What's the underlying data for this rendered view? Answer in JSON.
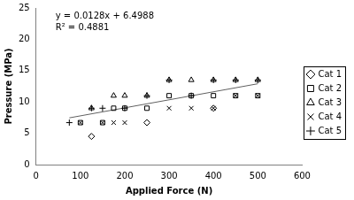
{
  "chart_data": {
    "type": "scatter",
    "x_label": "Applied Force (N)",
    "y_label": "Pressure (MPa)",
    "xlim": [
      0,
      600
    ],
    "xticks": [
      0,
      100,
      200,
      300,
      400,
      500,
      600
    ],
    "ylim": [
      0,
      25
    ],
    "yticks": [
      0,
      5,
      10,
      15,
      20,
      25
    ],
    "grid": false,
    "legend": "right",
    "annotations": [
      "y = 0.0128x + 6.4988",
      "R² = 0.4881"
    ],
    "series": [
      {
        "name": "Cat 1",
        "color": "#000000",
        "marker": "diamond",
        "x": [
          125,
          250,
          400
        ],
        "values": [
          4.5,
          6.7,
          9
        ]
      },
      {
        "name": "Cat 2",
        "color": "#000000",
        "marker": "square",
        "x": [
          100,
          150,
          175,
          200,
          250,
          300,
          350,
          400,
          450,
          500
        ],
        "values": [
          6.7,
          6.7,
          9,
          9,
          9,
          11,
          11,
          11,
          11,
          11
        ]
      },
      {
        "name": "Cat 3",
        "color": "#000000",
        "marker": "triangle",
        "x": [
          125,
          175,
          200,
          250,
          300,
          350,
          400,
          450,
          500
        ],
        "values": [
          9,
          11,
          11,
          11,
          13.5,
          13.5,
          13.5,
          13.5,
          13.5
        ]
      },
      {
        "name": "Cat 4",
        "color": "#000000",
        "marker": "x",
        "x": [
          100,
          150,
          175,
          200,
          300,
          350,
          400,
          450,
          500
        ],
        "values": [
          6.7,
          6.7,
          6.7,
          6.7,
          9,
          9,
          9,
          11,
          11
        ]
      },
      {
        "name": "Cat 5",
        "color": "#000000",
        "marker": "plus",
        "x": [
          75,
          125,
          150,
          200,
          250,
          300,
          350,
          400,
          450,
          500
        ],
        "values": [
          6.7,
          9,
          9,
          9,
          11,
          13.5,
          11,
          13.5,
          13.5,
          13.5
        ]
      }
    ],
    "trendline": {
      "color": "#606060",
      "x": [
        75,
        500
      ],
      "values": [
        7.46,
        12.9
      ]
    }
  }
}
